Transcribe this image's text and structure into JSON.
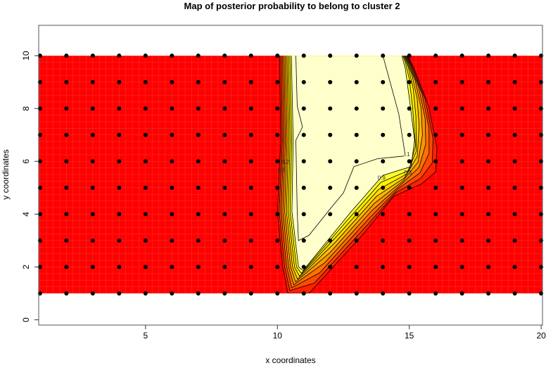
{
  "chart_data": {
    "type": "heatmap",
    "title": "Map of posterior probability to belong to cluster  2",
    "xlabel": "x coordinates",
    "ylabel": "y coordinates",
    "xlim": [
      0.95,
      20.05
    ],
    "ylim": [
      -0.2,
      11.15
    ],
    "xticks": [
      5,
      10,
      15,
      20
    ],
    "yticks": [
      0,
      2,
      4,
      6,
      8,
      10
    ],
    "grid_points": {
      "x": [
        1,
        2,
        3,
        4,
        5,
        6,
        7,
        8,
        9,
        10,
        11,
        12,
        13,
        14,
        15,
        16,
        17,
        18,
        19,
        20
      ],
      "y": [
        1,
        2,
        3,
        4,
        5,
        6,
        7,
        8,
        9,
        10
      ]
    },
    "background_level_color": "#FF0000",
    "contour_levels": [
      0.1,
      0.2,
      0.3,
      0.4,
      0.5,
      0.6,
      0.7,
      0.8,
      0.9
    ],
    "band_colors": [
      "#FF2000",
      "#FF4A00",
      "#FF7000",
      "#FF9400",
      "#FFB800",
      "#FFD800",
      "#FFF000",
      "#FFFF30",
      "#FFFFCC"
    ],
    "outer_contour_0_1": [
      [
        10.08,
        10
      ],
      [
        10.13,
        6.8
      ],
      [
        10.0,
        4.1
      ],
      [
        10.2,
        2
      ],
      [
        10.4,
        1
      ],
      [
        11.2,
        1
      ],
      [
        13.33,
        3.33
      ],
      [
        14.4,
        4.67
      ],
      [
        15.47,
        5.15
      ],
      [
        16.0,
        5.6
      ],
      [
        16.05,
        6.5
      ],
      [
        15.73,
        8.1
      ],
      [
        15.2,
        9.47
      ],
      [
        14.95,
        10
      ]
    ],
    "inner_contour_0_9": [
      [
        10.53,
        10
      ],
      [
        10.6,
        6.8
      ],
      [
        10.55,
        4.1
      ],
      [
        10.8,
        2
      ],
      [
        10.98,
        1.87
      ],
      [
        12.8,
        4.1
      ],
      [
        14.0,
        5.47
      ],
      [
        15.07,
        5.8
      ],
      [
        15.2,
        6.8
      ],
      [
        15.0,
        8.4
      ],
      [
        14.85,
        9.5
      ],
      [
        14.72,
        10
      ],
      [
        14.72,
        10
      ],
      [
        14.72,
        10
      ]
    ],
    "contour_1_lines": [
      [
        [
          10.7,
          10
        ],
        [
          10.75,
          8.1
        ],
        [
          10.95,
          7.3
        ],
        [
          10.7,
          6.8
        ],
        [
          10.75,
          4.1
        ],
        [
          10.8,
          3.0
        ],
        [
          11.2,
          3.2
        ],
        [
          12.0,
          4.2
        ],
        [
          12.5,
          4.8
        ],
        [
          12.9,
          5.8
        ],
        [
          13.8,
          6.1
        ],
        [
          14.8,
          6.2
        ]
      ],
      [
        [
          14.0,
          10
        ],
        [
          14.6,
          7.8
        ],
        [
          14.85,
          6.2
        ]
      ]
    ],
    "contour_labels": [
      "0.1",
      "0.2",
      "0.8",
      "0.9",
      "1"
    ]
  }
}
